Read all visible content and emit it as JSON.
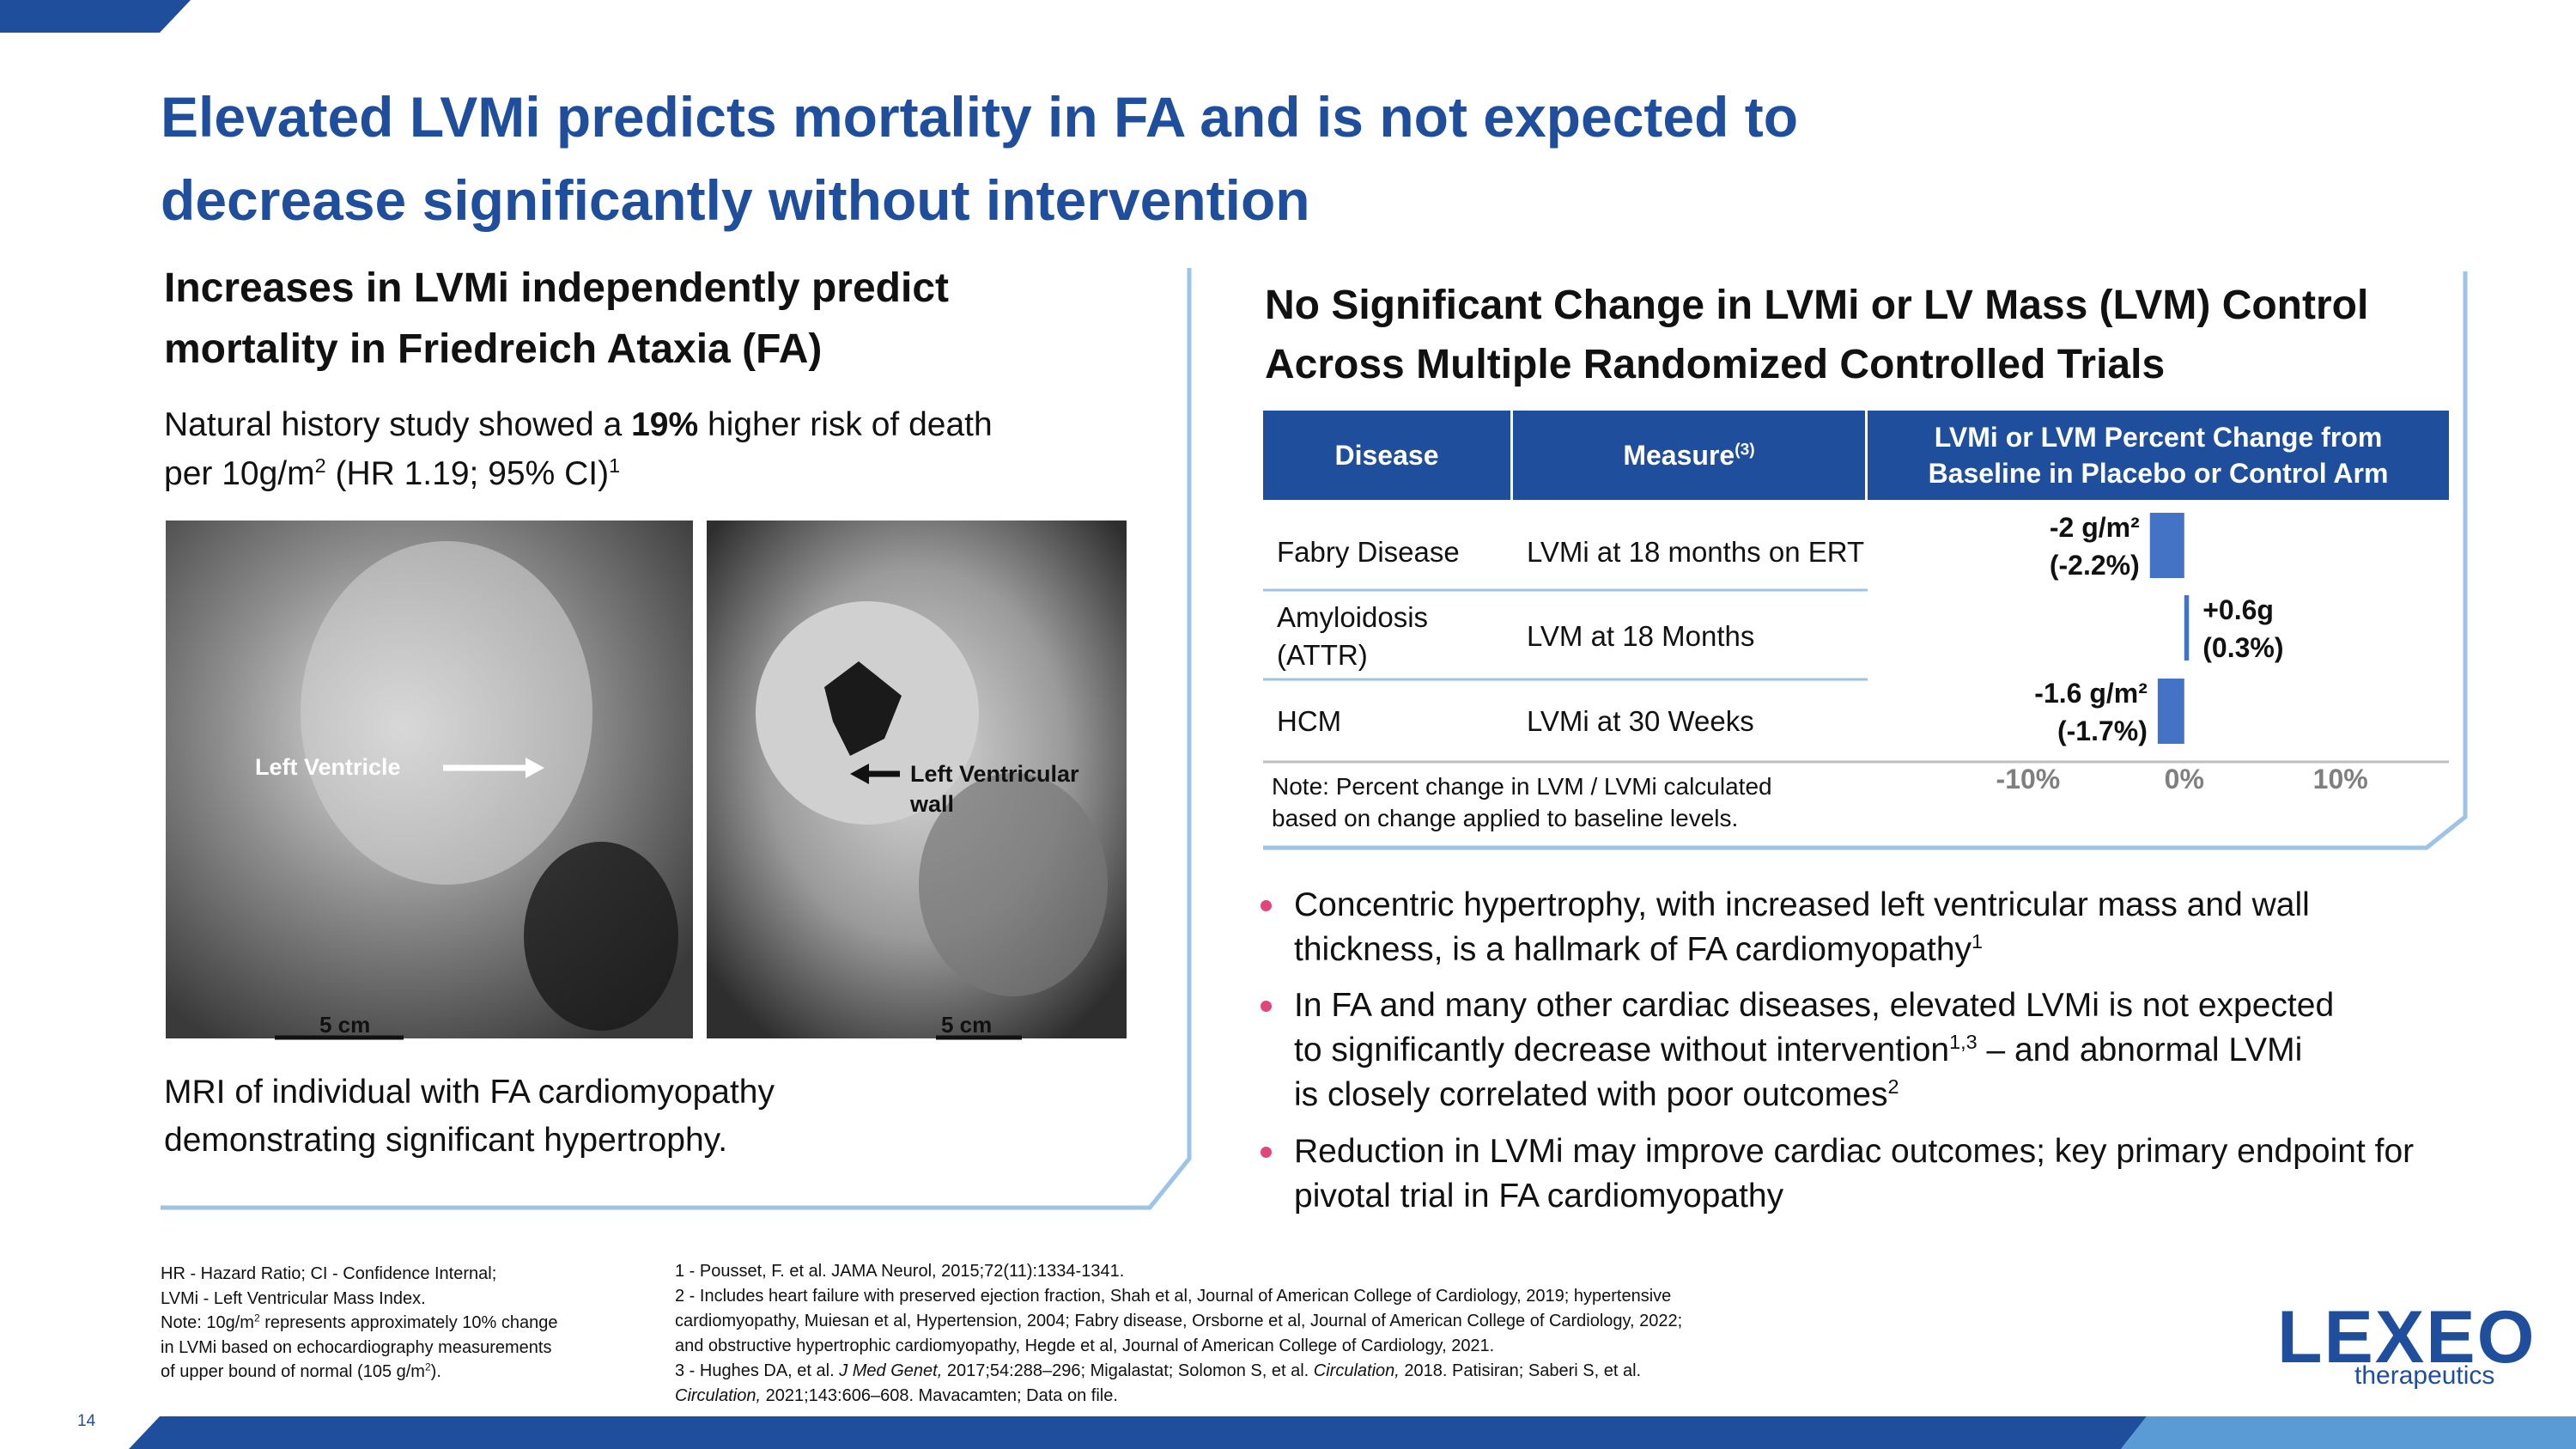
{
  "header": {
    "title_lines": [
      "Elevated LVMi predicts mortality in FA and is not expected to",
      "decrease significantly without intervention"
    ]
  },
  "left": {
    "heading_lines": [
      "Increases in LVMi independently predict",
      "mortality in Friedreich Ataxia (FA)"
    ],
    "text_lines": [
      [
        {
          "t": "Natural history study showed a "
        },
        {
          "b": "19%"
        },
        {
          "t": " higher risk of death"
        }
      ],
      [
        {
          "t": "per 10g/m"
        },
        {
          "sup": "2"
        },
        {
          "t": " (HR 1.19; 95% CI)"
        },
        {
          "sup": "1"
        }
      ]
    ],
    "image_labels": {
      "left_ventricle": "Left Ventricle",
      "wall_lines": [
        "Left Ventricular",
        "wall"
      ],
      "scale_left": "5 cm",
      "scale_right": "5 cm"
    },
    "caption_lines": [
      "MRI of individual with FA cardiomyopathy",
      "demonstrating significant hypertrophy."
    ]
  },
  "right": {
    "heading_lines": [
      "No Significant Change in LVMi or LV Mass (LVM) Control",
      "Across Multiple Randomized Controlled Trials"
    ],
    "table": {
      "headers": [
        [
          [
            {
              "t": "Disease"
            }
          ]
        ],
        [
          [
            {
              "t": "Measure"
            },
            {
              "sup": "(3)"
            }
          ]
        ],
        [
          [
            {
              "t": "LVMi or LVM Percent Change from"
            }
          ],
          [
            {
              "t": "Baseline in Placebo or Control Arm"
            }
          ]
        ]
      ],
      "rows": [
        [
          "Fabry Disease",
          "LVMi at 18 months on ERT"
        ],
        [
          "Amyloidosis (ATTR)",
          "LVM at 18 Months"
        ],
        [
          "HCM",
          "LVMi at 30 Weeks"
        ]
      ],
      "chart": {
        "type": "bar",
        "values": [
          -2.2,
          0.3,
          -1.7
        ],
        "value_labels": [
          [
            "-2 g/m²",
            "(-2.2%)"
          ],
          [
            "+0.6g",
            "(0.3%)"
          ],
          [
            "-1.6 g/m²",
            "(-1.7%)"
          ]
        ],
        "color": "#4472c4",
        "xlim": [
          -20,
          17
        ],
        "xticks": [
          {
            "value": -10,
            "label": "-10%"
          },
          {
            "value": 0,
            "label": "0%"
          },
          {
            "value": 10,
            "label": "10%"
          }
        ]
      },
      "note_lines": [
        "Note: Percent change in LVM / LVMi calculated",
        "based on change applied to baseline levels."
      ]
    },
    "bullets": [
      [
        [
          {
            "t": "Concentric hypertrophy, with increased left ventricular mass and wall"
          }
        ],
        [
          {
            "t": "thickness, is a hallmark of FA cardiomyopathy"
          },
          {
            "sup": "1"
          }
        ]
      ],
      [
        [
          {
            "t": "In FA and many other cardiac diseases, elevated LVMi is not expected"
          }
        ],
        [
          {
            "t": "to significantly decrease without intervention"
          },
          {
            "sup": "1,3"
          },
          {
            "t": " – and abnormal LVMi"
          }
        ],
        [
          {
            "t": "is closely correlated with poor outcomes"
          },
          {
            "sup": "2"
          }
        ]
      ],
      [
        [
          {
            "t": "Reduction in LVMi may improve cardiac outcomes; key primary endpoint for"
          }
        ],
        [
          {
            "t": "pivotal trial in FA cardiomyopathy"
          }
        ]
      ]
    ]
  },
  "footnotes": {
    "left_lines": [
      [
        {
          "t": "HR - Hazard Ratio; CI - Confidence Internal;"
        }
      ],
      [
        {
          "t": "LVMi - Left Ventricular Mass Index."
        }
      ],
      [
        {
          "t": "Note: 10g/m"
        },
        {
          "sup": "2"
        },
        {
          "t": " represents approximately 10% change"
        }
      ],
      [
        {
          "t": "in LVMi based on echocardiography measurements"
        }
      ],
      [
        {
          "t": "of upper bound of normal (105 g/m"
        },
        {
          "sup": "2"
        },
        {
          "t": ")."
        }
      ]
    ],
    "right_lines": [
      [
        {
          "t": "1 - Pousset, F. et al. JAMA Neurol, 2015;72(11):1334-1341."
        }
      ],
      [
        {
          "t": "2 - Includes heart failure with preserved ejection fraction, Shah et al, Journal of American College of Cardiology, 2019; hypertensive"
        }
      ],
      [
        {
          "t": "cardiomyopathy, Muiesan et al, Hypertension, 2004; Fabry disease, Orsborne et al, Journal of American College of Cardiology, 2022;"
        }
      ],
      [
        {
          "t": "and obstructive hypertrophic cardiomyopathy, Hegde et al, Journal of American College of Cardiology, 2021."
        }
      ],
      [
        {
          "t": "3 - Hughes DA, et al. "
        },
        {
          "i": "J Med Genet,"
        },
        {
          "t": " 2017;54:288–296; Migalastat; Solomon S, et al. "
        },
        {
          "i": "Circulation,"
        },
        {
          "t": " 2018. Patisiran; Saberi S, et al."
        }
      ],
      [
        {
          "i": "Circulation,"
        },
        {
          "t": " 2021;143:606–608. Mavacamten; Data on file."
        }
      ]
    ]
  },
  "footer": {
    "page_number": "14",
    "logo": "LEXEO",
    "logo_sub": "therapeutics"
  }
}
